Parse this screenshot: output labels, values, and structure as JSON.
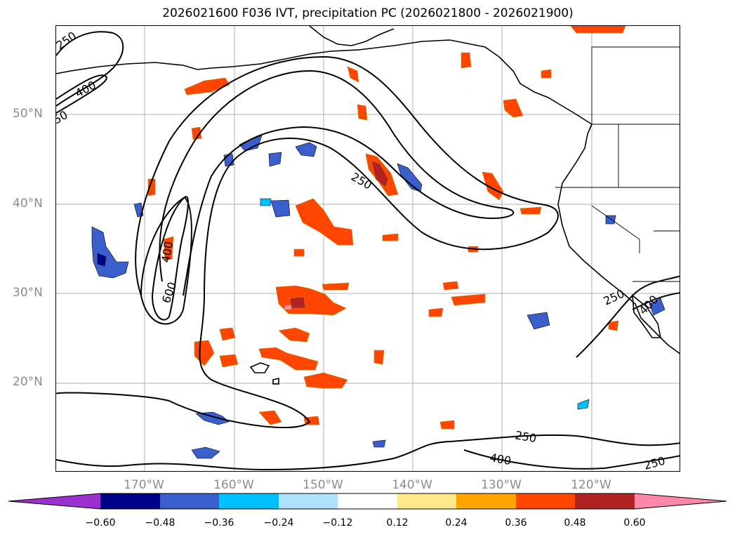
{
  "title": "2026021600 F036 IVT, precipitation PC (2026021800 - 2026021900)",
  "lat_labels": [
    "50°N",
    "40°N",
    "30°N",
    "20°N"
  ],
  "lon_labels": [
    "170°W",
    "160°W",
    "150°W",
    "140°W",
    "130°W",
    "120°W"
  ],
  "contour_labels": [
    "250",
    "400",
    "50",
    "400",
    "600",
    "250",
    "250",
    "400",
    "250",
    "250",
    "400"
  ],
  "colorbar": {
    "ticks": [
      "−0.60",
      "−0.48",
      "−0.36",
      "−0.24",
      "−0.12",
      "0.12",
      "0.24",
      "0.36",
      "0.48",
      "0.60"
    ],
    "colors": [
      "#9b30d0",
      "#00008b",
      "#3a5fcd",
      "#00bfff",
      "#b0e2ff",
      "#ffffff",
      "#ffe88a",
      "#ffa500",
      "#ff4500",
      "#b22222",
      "#ff88a8"
    ]
  },
  "colors": {
    "coast": "#000000",
    "grid": "#b0b0b0",
    "contour": "#000000"
  }
}
